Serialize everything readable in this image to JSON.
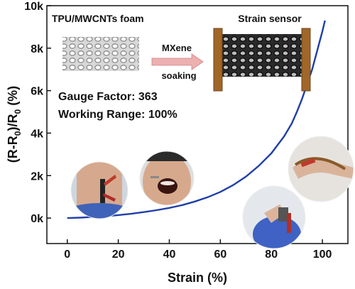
{
  "chart_data": {
    "type": "line",
    "xlabel": "Strain (%)",
    "ylabel": "(R-R0)/R0 (%)",
    "ylabel_parts": {
      "main1": "(R-R",
      "sub1": "0",
      "main2": ")/R",
      "sub2": "0",
      "main3": " (%)"
    },
    "xlim": [
      -8,
      110
    ],
    "ylim": [
      -1200,
      10000
    ],
    "x_ticks": [
      0,
      20,
      40,
      60,
      80,
      100
    ],
    "x_tick_labels": [
      "0",
      "20",
      "40",
      "60",
      "80",
      "100"
    ],
    "y_ticks": [
      0,
      2000,
      4000,
      6000,
      8000,
      10000
    ],
    "y_tick_labels": [
      "0k",
      "2k",
      "4k",
      "6k",
      "8k",
      "10k"
    ],
    "series": [
      {
        "color": "#1f3fa6",
        "x": [
          0,
          5,
          10,
          15,
          20,
          25,
          30,
          35,
          40,
          45,
          50,
          55,
          60,
          65,
          70,
          75,
          80,
          85,
          88,
          90,
          92,
          94,
          96,
          98,
          100,
          101
        ],
        "y": [
          0,
          20,
          50,
          90,
          140,
          200,
          280,
          370,
          480,
          610,
          780,
          980,
          1230,
          1550,
          1950,
          2450,
          3050,
          3850,
          4450,
          5000,
          5600,
          6300,
          7000,
          7900,
          8800,
          9300
        ]
      }
    ],
    "grid": false,
    "legend": "none"
  },
  "annotations": {
    "foam_label": "TPU/MWCNTs foam",
    "sensor_label": "Strain sensor",
    "arrow_top": "MXene",
    "arrow_bottom": "soaking",
    "gauge_factor": "Gauge Factor: 363",
    "working_range": "Working Range: 100%"
  },
  "colors": {
    "curve": "#1f3fa6",
    "axis": "#111111",
    "arrow": "#e8a0a0",
    "electrode": "#a0662a"
  },
  "photos": [
    "neck-photo",
    "mouth-photo",
    "finger-photo",
    "hand-bend-photo"
  ]
}
